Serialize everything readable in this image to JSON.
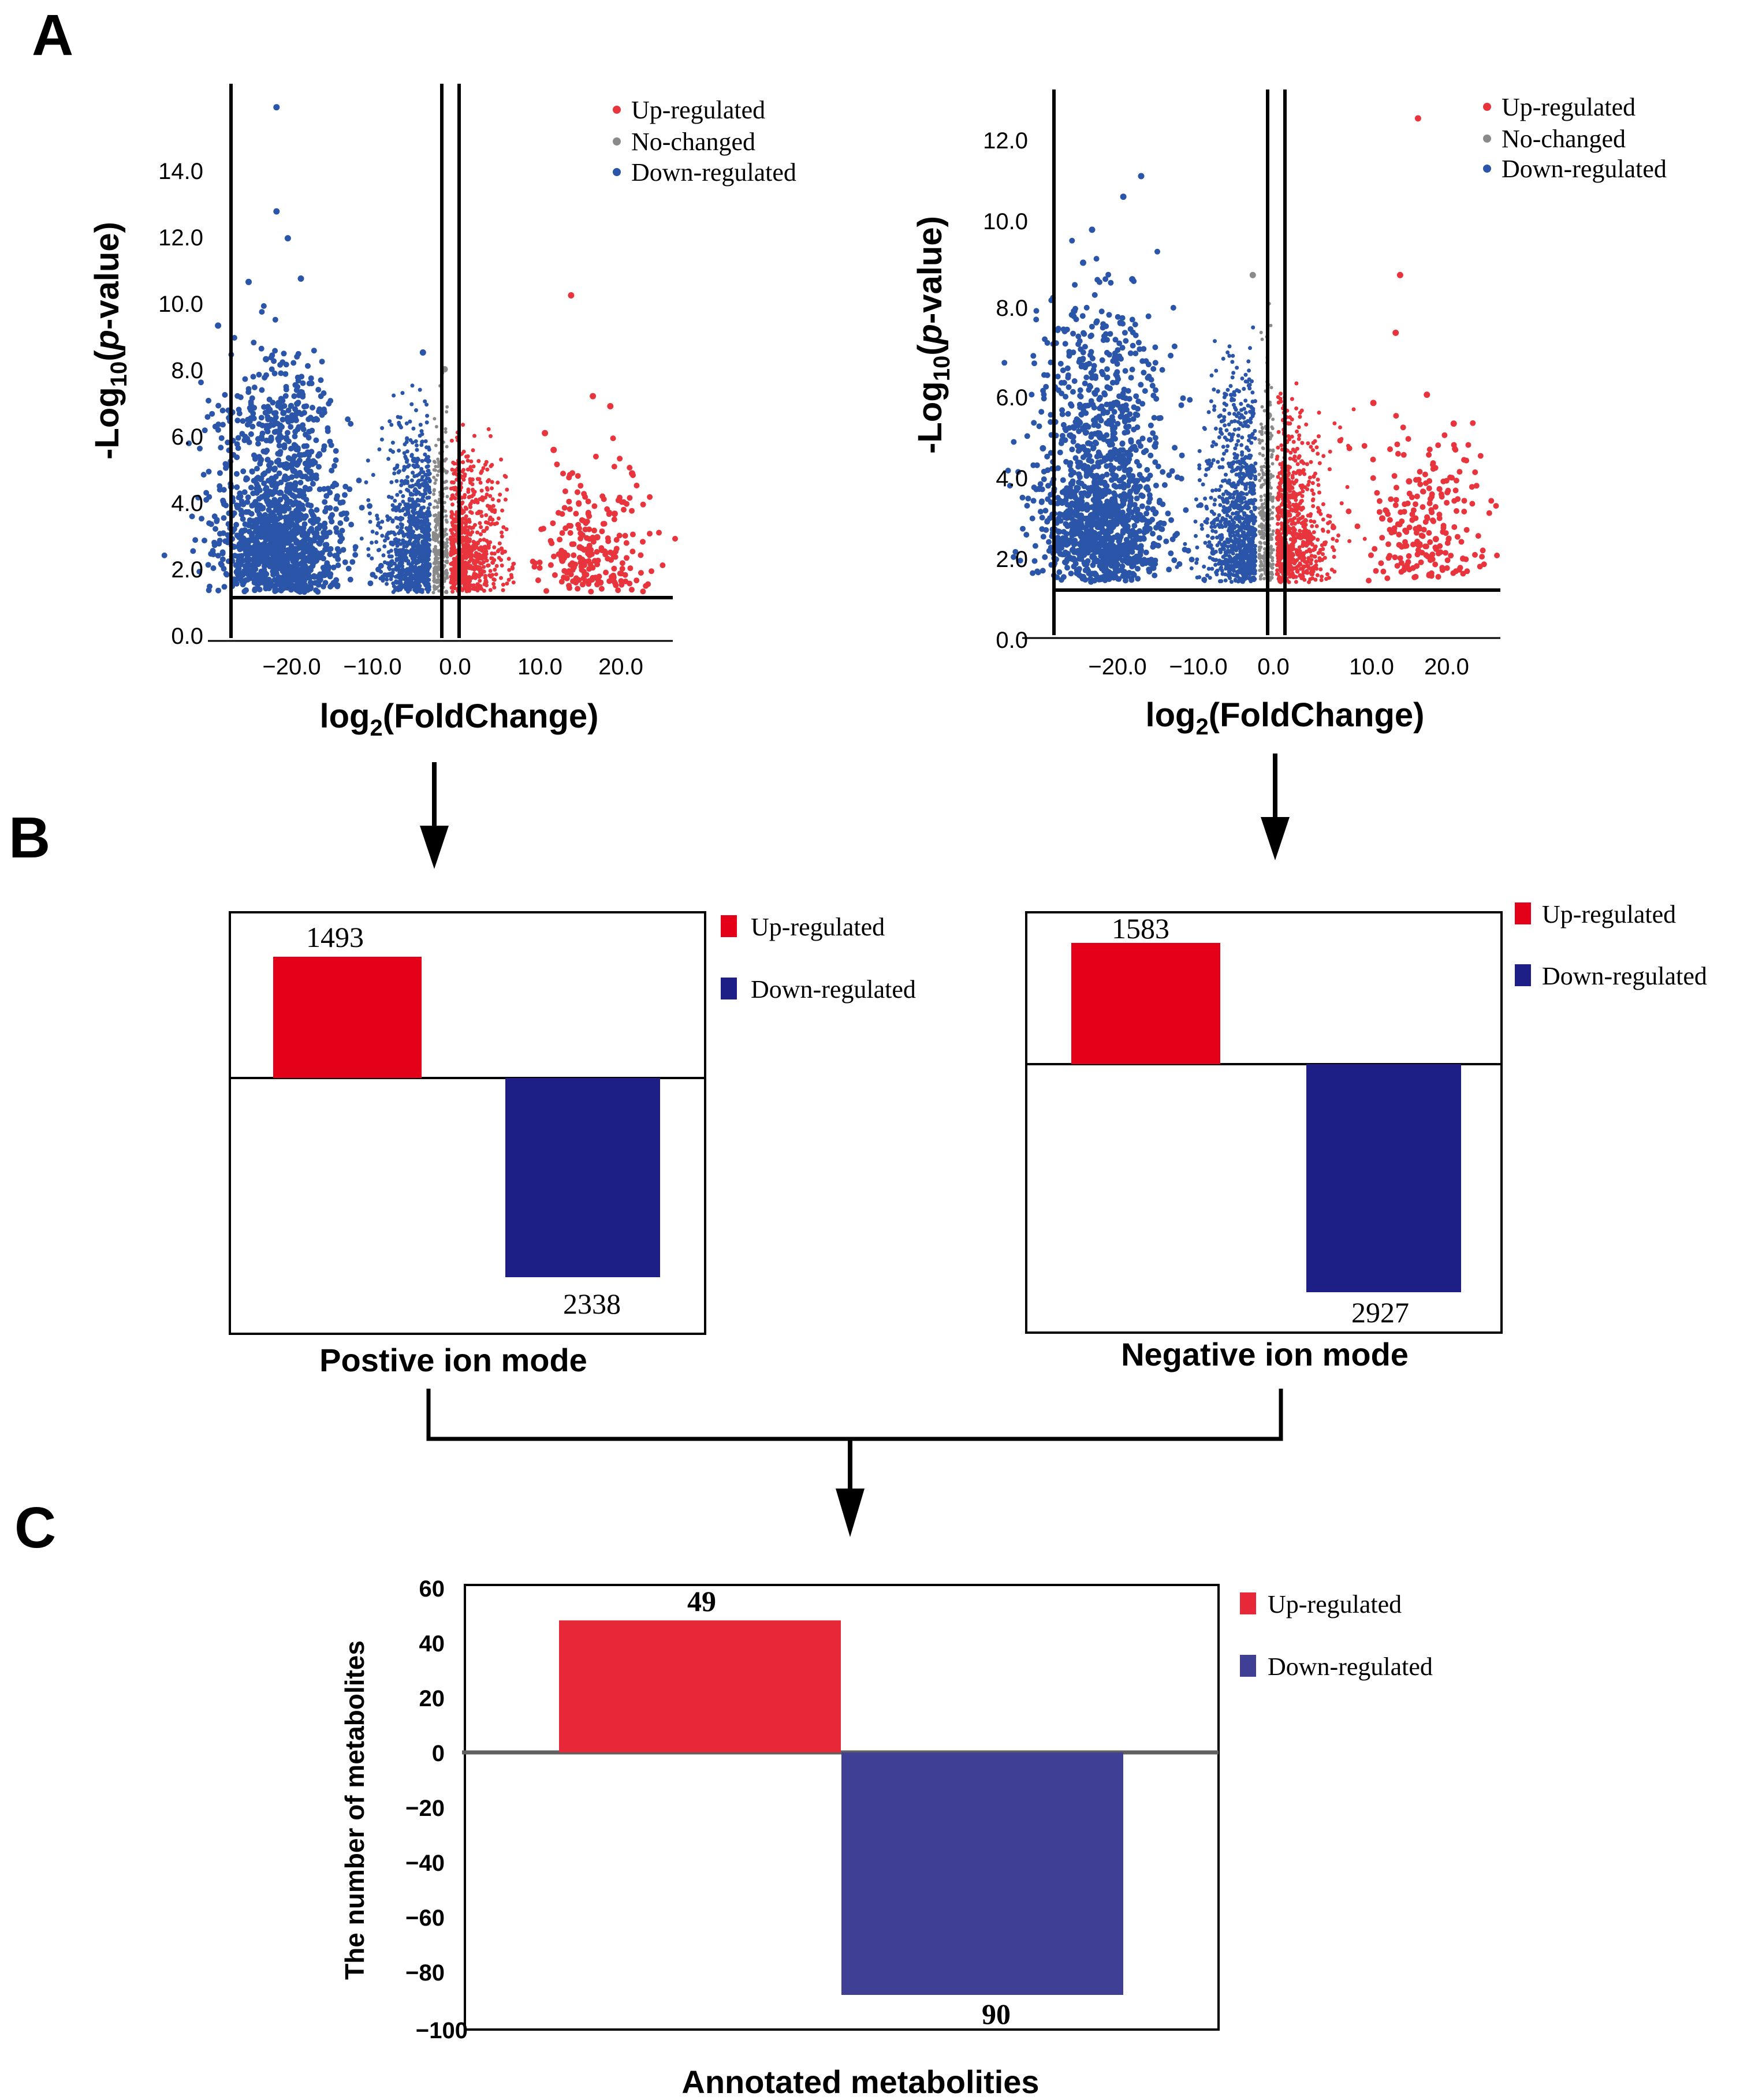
{
  "panel_letters": [
    "A",
    "B",
    "C"
  ],
  "colors": {
    "up": "#e8343c",
    "no_change": "#8a8a8a",
    "down": "#2a55a8",
    "bar_up": "#e5001a",
    "bar_down": "#1d1f87",
    "c_up": "#e62838",
    "c_down": "#3f3f96"
  },
  "chart_data": [
    {
      "type": "scatter",
      "panel": "A",
      "xlabel": "log2(FoldChange)",
      "ylabel": "-Log10(p-value)",
      "xlim": [
        -27,
        27
      ],
      "ylim": [
        0,
        16.5
      ],
      "x_ticks": [
        "−20.0",
        "−10.0",
        "0.0",
        "10.0",
        "20.0"
      ],
      "y_ticks": [
        "0.0",
        "2.0",
        "4.0",
        "6.0",
        "8.0",
        "10.0",
        "12.0",
        "14.0"
      ],
      "thresholds": {
        "p_line": 1.3,
        "fc_lines": [
          -1,
          1
        ]
      },
      "legend": [
        "Up-regulated",
        "No-changed",
        "Down-regulated"
      ],
      "series": [
        {
          "name": "Up-regulated",
          "values": [
            [
              15,
              10.2
            ],
            [
              17.5,
              7.2
            ],
            [
              19.5,
              6.9
            ],
            [
              12,
              6.1
            ],
            [
              13,
              5.6
            ],
            [
              22,
              4.9
            ],
            [
              20,
              3.7
            ],
            [
              18,
              3.0
            ],
            [
              16,
              2.7
            ],
            [
              14,
              2.3
            ]
          ]
        },
        {
          "name": "No-changed",
          "values": [
            [
              0.5,
              8.0
            ],
            [
              0.2,
              5.0
            ],
            [
              -0.4,
              3.5
            ],
            [
              0.6,
              2.5
            ]
          ]
        },
        {
          "name": "Down-regulated",
          "values": [
            [
              -18.8,
              15.8
            ],
            [
              -18.8,
              12.7
            ],
            [
              -17.5,
              11.9
            ],
            [
              -22,
              10.6
            ],
            [
              -16,
              10.7
            ],
            [
              -25.5,
              9.3
            ],
            [
              -20,
              8.3
            ],
            [
              -18,
              6.7
            ],
            [
              -24,
              4.5
            ],
            [
              -19,
              3.0
            ],
            [
              -2,
              8.5
            ],
            [
              -3,
              5.3
            ]
          ]
        }
      ]
    },
    {
      "type": "scatter",
      "panel": "A",
      "xlabel": "log2(FoldChange)",
      "ylabel": "-Log10(p-value)",
      "xlim": [
        -27,
        27
      ],
      "ylim": [
        0,
        13.3
      ],
      "x_ticks": [
        "−20.0",
        "−10.0",
        "0.0",
        "10.0",
        "20.0"
      ],
      "y_ticks": [
        "0.0",
        "2.0",
        "4.0",
        "6.0",
        "8.0",
        "10.0",
        "12.0"
      ],
      "thresholds": {
        "p_line": 1.3,
        "fc_lines": [
          -1,
          1
        ]
      },
      "legend": [
        "Up-regulated",
        "No-changed",
        "Down-regulated"
      ],
      "series": [
        {
          "name": "Up-regulated",
          "values": [
            [
              17,
              12.6
            ],
            [
              15,
              8.8
            ],
            [
              14.5,
              7.4
            ],
            [
              12,
              5.7
            ],
            [
              18,
              5.9
            ],
            [
              21,
              5.2
            ],
            [
              16,
              3.8
            ],
            [
              13,
              2.9
            ],
            [
              19,
              2.4
            ]
          ]
        },
        {
          "name": "No-changed",
          "values": [
            [
              -1.5,
              8.8
            ],
            [
              0.3,
              5.4
            ],
            [
              -0.3,
              3.0
            ]
          ]
        },
        {
          "name": "Down-regulated",
          "values": [
            [
              -14,
              11.2
            ],
            [
              -16,
              10.7
            ],
            [
              -19.5,
              9.9
            ],
            [
              -20.5,
              9.1
            ],
            [
              -15,
              8.7
            ],
            [
              -22,
              6.9
            ],
            [
              -25,
              4.6
            ],
            [
              -17,
              3.3
            ],
            [
              -20,
              2.2
            ]
          ]
        }
      ]
    },
    {
      "type": "bar",
      "panel": "B",
      "caption": "Postive ion mode",
      "categories": [
        "Up-regulated",
        "Down-regulated"
      ],
      "values": [
        1493,
        -2338
      ],
      "labels": [
        "1493",
        "2338"
      ]
    },
    {
      "type": "bar",
      "panel": "B",
      "caption": "Negative ion mode",
      "categories": [
        "Up-regulated",
        "Down-regulated"
      ],
      "values": [
        1583,
        -2927
      ],
      "labels": [
        "1583",
        "2927"
      ]
    },
    {
      "type": "bar",
      "panel": "C",
      "xlabel": "Annotated metabolities",
      "ylabel": "The number of metabolites",
      "ylim": [
        -100,
        60
      ],
      "y_ticks": [
        "60",
        "40",
        "20",
        "0",
        "−20",
        "−40",
        "−60",
        "−80",
        "−100"
      ],
      "categories": [
        "Up-regulated",
        "Down-regulated"
      ],
      "values": [
        49,
        -90
      ],
      "labels": [
        "49",
        "90"
      ],
      "legend": [
        "Up-regulated",
        "Down-regulated"
      ]
    }
  ]
}
